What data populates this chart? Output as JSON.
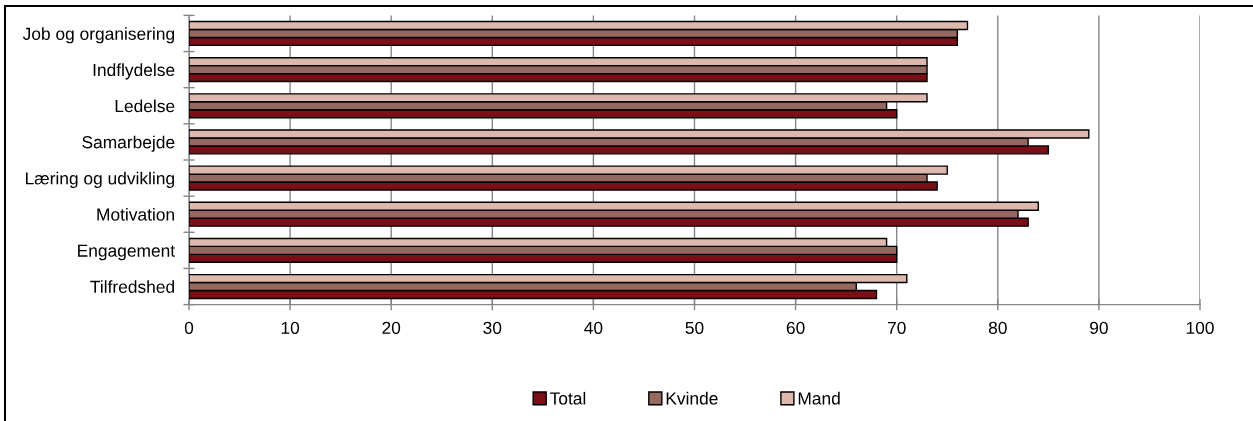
{
  "chart_data": {
    "type": "bar",
    "orientation": "horizontal",
    "categories": [
      "Job og organisering",
      "Indflydelse",
      "Ledelse",
      "Samarbejde",
      "Læring og udvikling",
      "Motivation",
      "Engagement",
      "Tilfredshed"
    ],
    "series": [
      {
        "name": "Total",
        "color": "#7b0f18",
        "values": [
          76,
          73,
          70,
          85,
          74,
          83,
          70,
          68
        ]
      },
      {
        "name": "Kvinde",
        "color": "#956960",
        "values": [
          76,
          73,
          69,
          83,
          73,
          82,
          70,
          66
        ]
      },
      {
        "name": "Mand",
        "color": "#dfb8ad",
        "values": [
          77,
          73,
          73,
          89,
          75,
          84,
          69,
          71
        ]
      }
    ],
    "xlim": [
      0,
      100
    ],
    "xticks": [
      0,
      10,
      20,
      30,
      40,
      50,
      60,
      70,
      80,
      90,
      100
    ],
    "grid": "x",
    "legend": "bottom"
  }
}
